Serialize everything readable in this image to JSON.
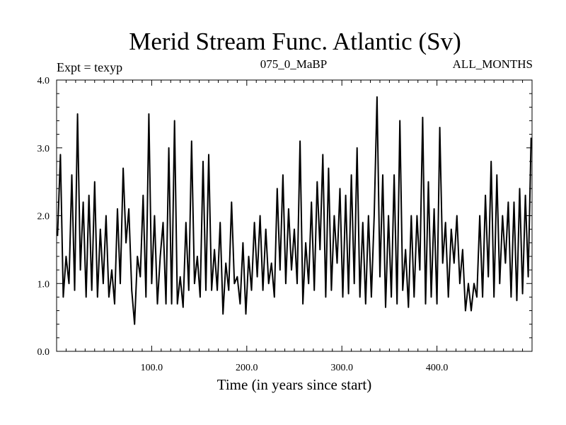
{
  "chart_data": {
    "type": "line",
    "title": "Merid Stream Func. Atlantic (Sv)",
    "left_label": "Expt = texyp",
    "center_label": "075_0_MaBP",
    "right_label": "ALL_MONTHS",
    "xlabel": "Time (in years since start)",
    "ylabel": "",
    "xlim": [
      0,
      500
    ],
    "ylim": [
      0.0,
      4.0
    ],
    "x_ticks": [
      100,
      200,
      300,
      400
    ],
    "x_tick_labels": [
      "100.0",
      "200.0",
      "300.0",
      "400.0"
    ],
    "y_ticks": [
      0,
      1,
      2,
      3,
      4
    ],
    "y_tick_labels": [
      "0.0",
      "1.0",
      "2.0",
      "3.0",
      "4.0"
    ],
    "grid": false,
    "series": [
      {
        "color": "#000000",
        "x": [
          1,
          4,
          7,
          10,
          13,
          16,
          19,
          22,
          25,
          28,
          31,
          34,
          37,
          40,
          43,
          46,
          49,
          52,
          55,
          58,
          61,
          64,
          67,
          70,
          73,
          76,
          79,
          82,
          85,
          88,
          91,
          94,
          97,
          100,
          103,
          106,
          109,
          112,
          115,
          118,
          121,
          124,
          127,
          130,
          133,
          136,
          139,
          142,
          145,
          148,
          151,
          154,
          157,
          160,
          163,
          166,
          169,
          172,
          175,
          178,
          181,
          184,
          187,
          190,
          193,
          196,
          199,
          202,
          205,
          208,
          211,
          214,
          217,
          220,
          223,
          226,
          229,
          232,
          235,
          238,
          241,
          244,
          247,
          250,
          253,
          256,
          259,
          262,
          265,
          268,
          271,
          274,
          277,
          280,
          283,
          286,
          289,
          292,
          295,
          298,
          301,
          304,
          307,
          310,
          313,
          316,
          319,
          322,
          325,
          328,
          331,
          334,
          337,
          340,
          343,
          346,
          349,
          352,
          355,
          358,
          361,
          364,
          367,
          370,
          373,
          376,
          379,
          382,
          385,
          388,
          391,
          394,
          397,
          400,
          403,
          406,
          409,
          412,
          415,
          418,
          421,
          424,
          427,
          430,
          433,
          436,
          439,
          442,
          445,
          448,
          451,
          454,
          457,
          460,
          463,
          466,
          469,
          472,
          475,
          478,
          481,
          484,
          487,
          490,
          493,
          496,
          499
        ],
        "values": [
          1.7,
          2.9,
          0.8,
          1.4,
          1.0,
          2.6,
          0.9,
          3.5,
          1.2,
          2.2,
          0.8,
          2.3,
          0.9,
          2.5,
          0.8,
          1.8,
          1.0,
          2.0,
          0.8,
          1.2,
          0.7,
          2.1,
          1.0,
          2.7,
          1.6,
          2.1,
          0.9,
          0.4,
          1.4,
          1.1,
          2.3,
          0.8,
          3.5,
          1.0,
          2.0,
          0.7,
          1.4,
          1.9,
          0.7,
          3.0,
          0.7,
          3.4,
          0.7,
          1.1,
          0.65,
          1.9,
          0.9,
          3.1,
          1.0,
          1.4,
          0.8,
          2.8,
          0.9,
          2.9,
          0.9,
          1.5,
          0.9,
          1.9,
          0.55,
          1.3,
          0.9,
          2.2,
          1.0,
          1.1,
          0.7,
          1.6,
          0.55,
          1.4,
          0.9,
          1.9,
          1.1,
          2.0,
          0.9,
          1.8,
          1.0,
          1.3,
          0.8,
          2.4,
          1.2,
          2.6,
          1.0,
          2.1,
          1.2,
          1.8,
          1.0,
          3.1,
          0.7,
          1.6,
          1.0,
          2.2,
          0.9,
          2.5,
          1.5,
          2.9,
          0.8,
          2.7,
          0.9,
          2.0,
          1.3,
          2.4,
          0.8,
          2.3,
          0.85,
          2.6,
          1.0,
          3.0,
          0.8,
          1.9,
          0.7,
          2.0,
          0.8,
          2.0,
          3.75,
          1.1,
          2.6,
          0.65,
          2.0,
          0.8,
          2.6,
          0.7,
          3.4,
          0.9,
          1.5,
          0.65,
          2.0,
          0.8,
          2.0,
          1.2,
          3.45,
          0.7,
          2.5,
          0.8,
          2.1,
          0.7,
          3.3,
          1.3,
          1.9,
          0.8,
          1.8,
          1.3,
          2.0,
          1.0,
          1.5,
          0.6,
          1.0,
          0.6,
          1.0,
          0.8,
          2.0,
          0.8,
          2.3,
          1.1,
          2.8,
          0.8,
          2.6,
          1.0,
          2.0,
          1.3,
          2.2,
          0.8,
          2.2,
          0.75,
          2.4,
          0.85,
          2.3,
          1.1,
          3.15
        ]
      }
    ]
  }
}
